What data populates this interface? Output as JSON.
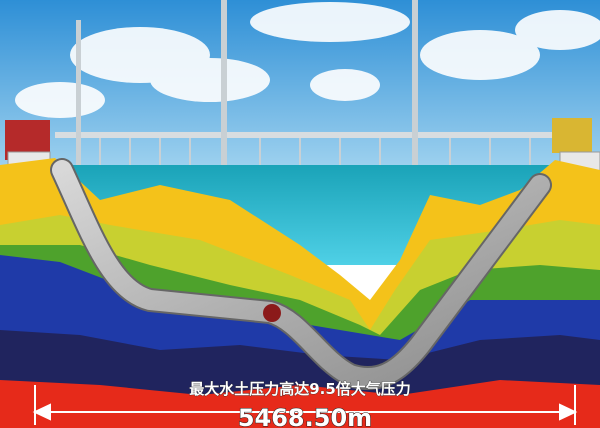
{
  "caption": "最大水土压力高达9.5倍大气压力",
  "length_label": "5468.50m"
}
